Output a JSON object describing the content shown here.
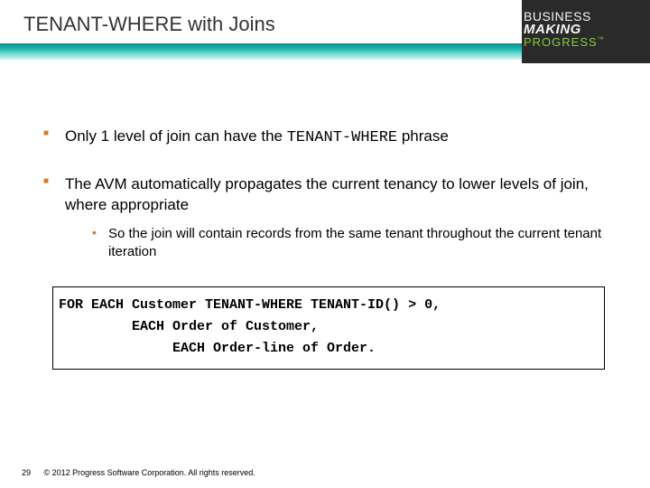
{
  "title": "TENANT-WHERE with Joins",
  "logo": {
    "line1": "BUSINESS",
    "line2": "MAKING",
    "line3": "PROGRESS",
    "tm": "™"
  },
  "bullets": {
    "b1_pre": "Only 1 level of join can have the ",
    "b1_code": "TENANT-WHERE",
    "b1_post": " phrase",
    "b2": "The AVM automatically propagates the current tenancy to lower levels of join, where appropriate",
    "b2_sub": "So the join will contain records from the same tenant throughout the current tenant iteration"
  },
  "code": {
    "l1": "FOR EACH Customer TENANT-WHERE TENANT-ID() > 0,",
    "l2": "         EACH Order of Customer,",
    "l3": "              EACH Order-line of Order."
  },
  "footer": {
    "page": "29",
    "copyright": "© 2012 Progress Software Corporation. All rights reserved."
  },
  "colors": {
    "bullet_square": "#d97a1a",
    "gradient_top": "#0a8f8f",
    "gradient_bottom": "#d8f3f1",
    "logo_bg": "#2a2a2a",
    "logo_accent": "#8cc63f"
  }
}
